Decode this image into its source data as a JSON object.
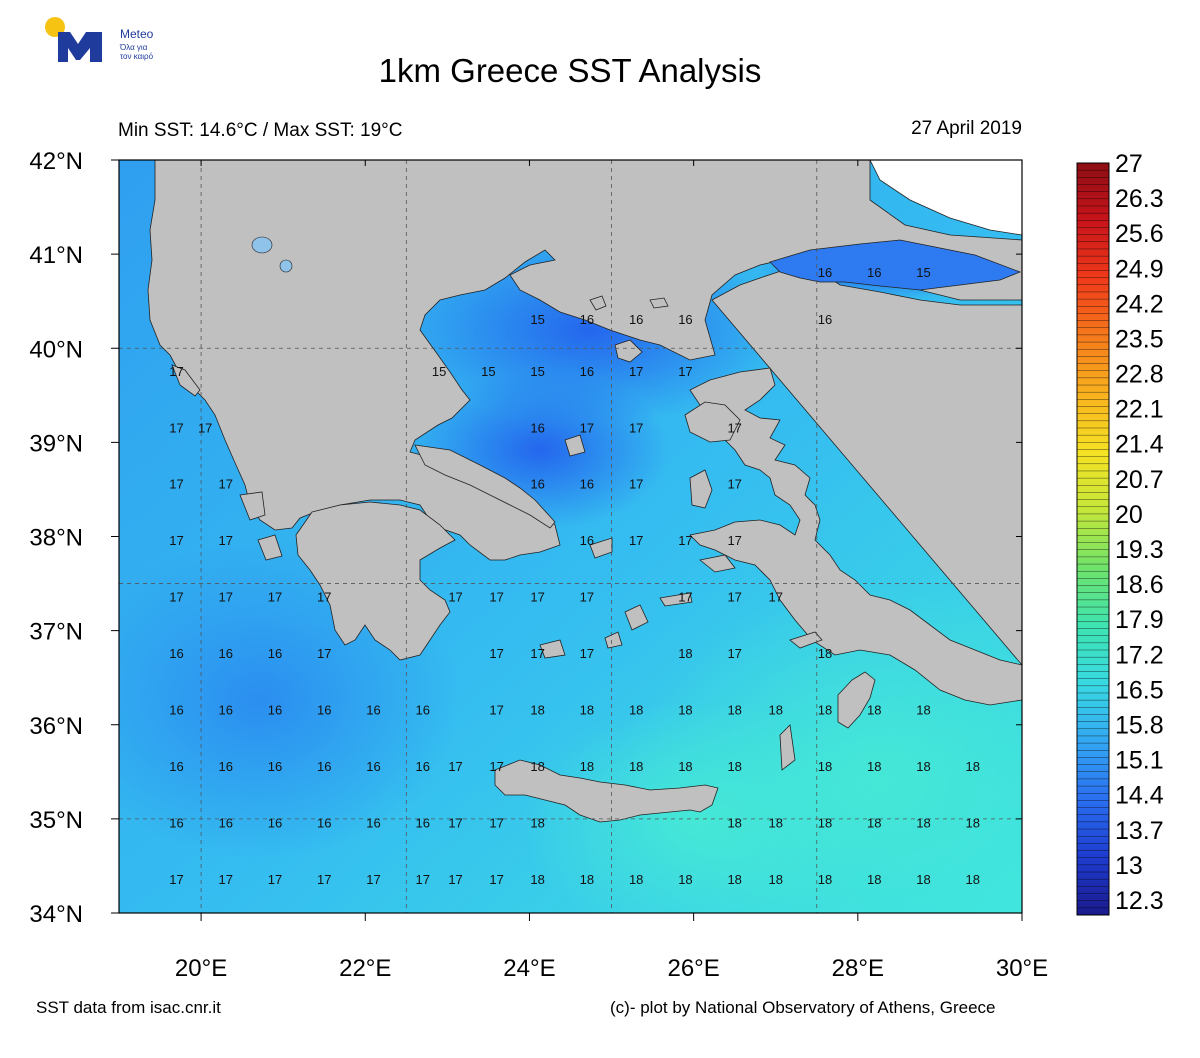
{
  "logo": {
    "brand": "Meteo",
    "tagline_line1": "Όλα για",
    "tagline_line2": "τον καιρό"
  },
  "title": "1km Greece SST Analysis",
  "subtitle_left": "Min SST: 14.6°C / Max SST: 19°C",
  "subtitle_right": "27 April 2019",
  "footer_left": "SST data from isac.cnr.it",
  "footer_right": "(c)- plot by National Observatory of Athens, Greece",
  "map": {
    "lon_ticks": [
      {
        "value": 20,
        "label": "20°E"
      },
      {
        "value": 22,
        "label": "22°E"
      },
      {
        "value": 24,
        "label": "24°E"
      },
      {
        "value": 26,
        "label": "26°E"
      },
      {
        "value": 28,
        "label": "28°E"
      },
      {
        "value": 30,
        "label": "30°E"
      }
    ],
    "lat_ticks": [
      {
        "value": 42,
        "label": "42°N"
      },
      {
        "value": 41,
        "label": "41°N"
      },
      {
        "value": 40,
        "label": "40°N"
      },
      {
        "value": 39,
        "label": "39°N"
      },
      {
        "value": 38,
        "label": "38°N"
      },
      {
        "value": 37,
        "label": "37°N"
      },
      {
        "value": 36,
        "label": "36°N"
      },
      {
        "value": 35,
        "label": "35°N"
      },
      {
        "value": 34,
        "label": "34°N"
      }
    ],
    "lon_range": [
      19,
      30
    ],
    "lat_range": [
      34,
      42
    ],
    "colors": {
      "land": "#c0c0c0",
      "sea_cold": "#2e6ff0",
      "sea_mid": "#33b4f2",
      "sea_warm": "#3fe3dc"
    },
    "sst_labels": [
      {
        "lon": 27.6,
        "lat": 40.8,
        "value": "16"
      },
      {
        "lon": 28.2,
        "lat": 40.8,
        "value": "16"
      },
      {
        "lon": 28.8,
        "lat": 40.8,
        "value": "15"
      },
      {
        "lon": 27.6,
        "lat": 40.3,
        "value": "16"
      },
      {
        "lon": 24.1,
        "lat": 40.3,
        "value": "15"
      },
      {
        "lon": 24.7,
        "lat": 40.3,
        "value": "16"
      },
      {
        "lon": 25.3,
        "lat": 40.3,
        "value": "16"
      },
      {
        "lon": 25.9,
        "lat": 40.3,
        "value": "16"
      },
      {
        "lon": 19.7,
        "lat": 39.75,
        "value": "17"
      },
      {
        "lon": 22.9,
        "lat": 39.75,
        "value": "15"
      },
      {
        "lon": 23.5,
        "lat": 39.75,
        "value": "15"
      },
      {
        "lon": 24.1,
        "lat": 39.75,
        "value": "15"
      },
      {
        "lon": 24.7,
        "lat": 39.75,
        "value": "16"
      },
      {
        "lon": 25.3,
        "lat": 39.75,
        "value": "17"
      },
      {
        "lon": 25.9,
        "lat": 39.75,
        "value": "17"
      },
      {
        "lon": 19.7,
        "lat": 39.15,
        "value": "17"
      },
      {
        "lon": 20.05,
        "lat": 39.15,
        "value": "17"
      },
      {
        "lon": 24.1,
        "lat": 39.15,
        "value": "16"
      },
      {
        "lon": 24.7,
        "lat": 39.15,
        "value": "17"
      },
      {
        "lon": 25.3,
        "lat": 39.15,
        "value": "17"
      },
      {
        "lon": 26.5,
        "lat": 39.15,
        "value": "17"
      },
      {
        "lon": 19.7,
        "lat": 38.55,
        "value": "17"
      },
      {
        "lon": 20.3,
        "lat": 38.55,
        "value": "17"
      },
      {
        "lon": 24.1,
        "lat": 38.55,
        "value": "16"
      },
      {
        "lon": 24.7,
        "lat": 38.55,
        "value": "16"
      },
      {
        "lon": 25.3,
        "lat": 38.55,
        "value": "17"
      },
      {
        "lon": 26.5,
        "lat": 38.55,
        "value": "17"
      },
      {
        "lon": 19.7,
        "lat": 37.95,
        "value": "17"
      },
      {
        "lon": 20.3,
        "lat": 37.95,
        "value": "17"
      },
      {
        "lon": 24.7,
        "lat": 37.95,
        "value": "16"
      },
      {
        "lon": 25.3,
        "lat": 37.95,
        "value": "17"
      },
      {
        "lon": 25.9,
        "lat": 37.95,
        "value": "17"
      },
      {
        "lon": 26.5,
        "lat": 37.95,
        "value": "17"
      },
      {
        "lon": 19.7,
        "lat": 37.35,
        "value": "17"
      },
      {
        "lon": 20.3,
        "lat": 37.35,
        "value": "17"
      },
      {
        "lon": 20.9,
        "lat": 37.35,
        "value": "17"
      },
      {
        "lon": 21.5,
        "lat": 37.35,
        "value": "17"
      },
      {
        "lon": 23.1,
        "lat": 37.35,
        "value": "17"
      },
      {
        "lon": 23.6,
        "lat": 37.35,
        "value": "17"
      },
      {
        "lon": 24.1,
        "lat": 37.35,
        "value": "17"
      },
      {
        "lon": 24.7,
        "lat": 37.35,
        "value": "17"
      },
      {
        "lon": 25.9,
        "lat": 37.35,
        "value": "17"
      },
      {
        "lon": 26.5,
        "lat": 37.35,
        "value": "17"
      },
      {
        "lon": 27.0,
        "lat": 37.35,
        "value": "17"
      },
      {
        "lon": 19.7,
        "lat": 36.75,
        "value": "16"
      },
      {
        "lon": 20.3,
        "lat": 36.75,
        "value": "16"
      },
      {
        "lon": 20.9,
        "lat": 36.75,
        "value": "16"
      },
      {
        "lon": 21.5,
        "lat": 36.75,
        "value": "17"
      },
      {
        "lon": 23.6,
        "lat": 36.75,
        "value": "17"
      },
      {
        "lon": 24.1,
        "lat": 36.75,
        "value": "17"
      },
      {
        "lon": 24.7,
        "lat": 36.75,
        "value": "17"
      },
      {
        "lon": 25.9,
        "lat": 36.75,
        "value": "18"
      },
      {
        "lon": 26.5,
        "lat": 36.75,
        "value": "17"
      },
      {
        "lon": 27.6,
        "lat": 36.75,
        "value": "18"
      },
      {
        "lon": 19.7,
        "lat": 36.15,
        "value": "16"
      },
      {
        "lon": 20.3,
        "lat": 36.15,
        "value": "16"
      },
      {
        "lon": 20.9,
        "lat": 36.15,
        "value": "16"
      },
      {
        "lon": 21.5,
        "lat": 36.15,
        "value": "16"
      },
      {
        "lon": 22.1,
        "lat": 36.15,
        "value": "16"
      },
      {
        "lon": 22.7,
        "lat": 36.15,
        "value": "16"
      },
      {
        "lon": 23.6,
        "lat": 36.15,
        "value": "17"
      },
      {
        "lon": 24.1,
        "lat": 36.15,
        "value": "18"
      },
      {
        "lon": 24.7,
        "lat": 36.15,
        "value": "18"
      },
      {
        "lon": 25.3,
        "lat": 36.15,
        "value": "18"
      },
      {
        "lon": 25.9,
        "lat": 36.15,
        "value": "18"
      },
      {
        "lon": 26.5,
        "lat": 36.15,
        "value": "18"
      },
      {
        "lon": 27.0,
        "lat": 36.15,
        "value": "18"
      },
      {
        "lon": 27.6,
        "lat": 36.15,
        "value": "18"
      },
      {
        "lon": 28.2,
        "lat": 36.15,
        "value": "18"
      },
      {
        "lon": 28.8,
        "lat": 36.15,
        "value": "18"
      },
      {
        "lon": 19.7,
        "lat": 35.55,
        "value": "16"
      },
      {
        "lon": 20.3,
        "lat": 35.55,
        "value": "16"
      },
      {
        "lon": 20.9,
        "lat": 35.55,
        "value": "16"
      },
      {
        "lon": 21.5,
        "lat": 35.55,
        "value": "16"
      },
      {
        "lon": 22.1,
        "lat": 35.55,
        "value": "16"
      },
      {
        "lon": 22.7,
        "lat": 35.55,
        "value": "16"
      },
      {
        "lon": 23.1,
        "lat": 35.55,
        "value": "17"
      },
      {
        "lon": 23.6,
        "lat": 35.55,
        "value": "17"
      },
      {
        "lon": 24.1,
        "lat": 35.55,
        "value": "18"
      },
      {
        "lon": 24.7,
        "lat": 35.55,
        "value": "18"
      },
      {
        "lon": 25.3,
        "lat": 35.55,
        "value": "18"
      },
      {
        "lon": 25.9,
        "lat": 35.55,
        "value": "18"
      },
      {
        "lon": 26.5,
        "lat": 35.55,
        "value": "18"
      },
      {
        "lon": 27.6,
        "lat": 35.55,
        "value": "18"
      },
      {
        "lon": 28.2,
        "lat": 35.55,
        "value": "18"
      },
      {
        "lon": 28.8,
        "lat": 35.55,
        "value": "18"
      },
      {
        "lon": 29.4,
        "lat": 35.55,
        "value": "18"
      },
      {
        "lon": 19.7,
        "lat": 34.95,
        "value": "16"
      },
      {
        "lon": 20.3,
        "lat": 34.95,
        "value": "16"
      },
      {
        "lon": 20.9,
        "lat": 34.95,
        "value": "16"
      },
      {
        "lon": 21.5,
        "lat": 34.95,
        "value": "16"
      },
      {
        "lon": 22.1,
        "lat": 34.95,
        "value": "16"
      },
      {
        "lon": 22.7,
        "lat": 34.95,
        "value": "16"
      },
      {
        "lon": 23.1,
        "lat": 34.95,
        "value": "17"
      },
      {
        "lon": 23.6,
        "lat": 34.95,
        "value": "17"
      },
      {
        "lon": 24.1,
        "lat": 34.95,
        "value": "18"
      },
      {
        "lon": 26.5,
        "lat": 34.95,
        "value": "18"
      },
      {
        "lon": 27.0,
        "lat": 34.95,
        "value": "18"
      },
      {
        "lon": 27.6,
        "lat": 34.95,
        "value": "18"
      },
      {
        "lon": 28.2,
        "lat": 34.95,
        "value": "18"
      },
      {
        "lon": 28.8,
        "lat": 34.95,
        "value": "18"
      },
      {
        "lon": 29.4,
        "lat": 34.95,
        "value": "18"
      },
      {
        "lon": 19.7,
        "lat": 34.35,
        "value": "17"
      },
      {
        "lon": 20.3,
        "lat": 34.35,
        "value": "17"
      },
      {
        "lon": 20.9,
        "lat": 34.35,
        "value": "17"
      },
      {
        "lon": 21.5,
        "lat": 34.35,
        "value": "17"
      },
      {
        "lon": 22.1,
        "lat": 34.35,
        "value": "17"
      },
      {
        "lon": 22.7,
        "lat": 34.35,
        "value": "17"
      },
      {
        "lon": 23.1,
        "lat": 34.35,
        "value": "17"
      },
      {
        "lon": 23.6,
        "lat": 34.35,
        "value": "17"
      },
      {
        "lon": 24.1,
        "lat": 34.35,
        "value": "18"
      },
      {
        "lon": 24.7,
        "lat": 34.35,
        "value": "18"
      },
      {
        "lon": 25.3,
        "lat": 34.35,
        "value": "18"
      },
      {
        "lon": 25.9,
        "lat": 34.35,
        "value": "18"
      },
      {
        "lon": 26.5,
        "lat": 34.35,
        "value": "18"
      },
      {
        "lon": 27.0,
        "lat": 34.35,
        "value": "18"
      },
      {
        "lon": 27.6,
        "lat": 34.35,
        "value": "18"
      },
      {
        "lon": 28.2,
        "lat": 34.35,
        "value": "18"
      },
      {
        "lon": 28.8,
        "lat": 34.35,
        "value": "18"
      },
      {
        "lon": 29.4,
        "lat": 34.35,
        "value": "18"
      }
    ]
  },
  "colorbar": {
    "labels": [
      "27",
      "26.3",
      "25.6",
      "24.9",
      "24.2",
      "23.5",
      "22.8",
      "22.1",
      "21.4",
      "20.7",
      "20",
      "19.3",
      "18.6",
      "17.9",
      "17.2",
      "16.5",
      "15.8",
      "15.1",
      "14.4",
      "13.7",
      "13",
      "12.3"
    ],
    "min": 12,
    "max": 27,
    "stops": [
      "#1a1a8c",
      "#1e3ccf",
      "#2a6ff0",
      "#33a7f2",
      "#38d9e2",
      "#3fe3b0",
      "#6fe36a",
      "#c5e63a",
      "#f5e224",
      "#f8b21e",
      "#f67a1c",
      "#ef3a1a",
      "#c8141a",
      "#8c0e14"
    ]
  }
}
